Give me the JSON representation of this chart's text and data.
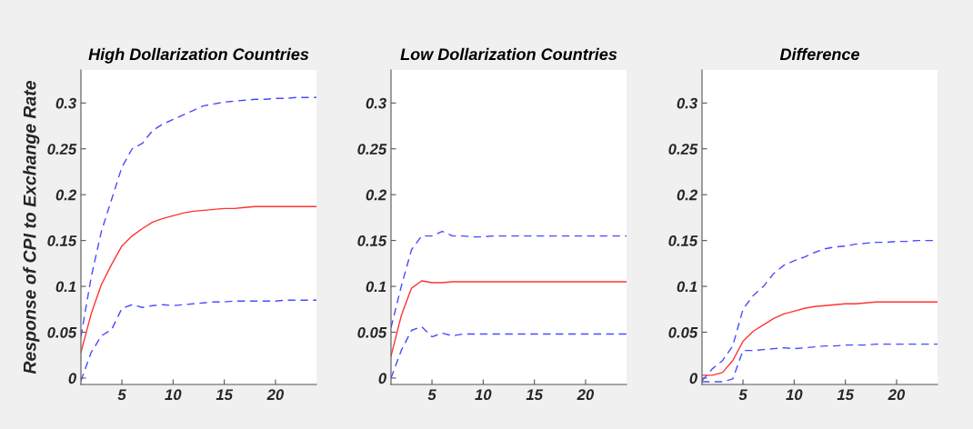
{
  "chart_data": [
    {
      "type": "line",
      "title": "High Dollarization Countries",
      "ylabel": "Response of CPI to Exchange Rate",
      "x": [
        1,
        2,
        3,
        4,
        5,
        6,
        7,
        8,
        9,
        10,
        11,
        12,
        13,
        14,
        15,
        16,
        17,
        18,
        19,
        20,
        21,
        22,
        23,
        24
      ],
      "xlim": [
        1,
        24
      ],
      "xticks": [
        5,
        10,
        15,
        20
      ],
      "ylim": [
        -0.007,
        0.336
      ],
      "yticks": [
        0,
        0.05,
        0.1,
        0.15,
        0.2,
        0.25,
        0.3
      ],
      "grid": false,
      "legend": false,
      "series": [
        {
          "color": "#ff3333",
          "line_style": "solid",
          "values": [
            0.028,
            0.07,
            0.102,
            0.124,
            0.144,
            0.155,
            0.163,
            0.17,
            0.174,
            0.177,
            0.18,
            0.182,
            0.183,
            0.184,
            0.185,
            0.185,
            0.186,
            0.187,
            0.187,
            0.187,
            0.187,
            0.187,
            0.187,
            0.187
          ]
        },
        {
          "color": "#4a4aff",
          "line_style": "dashed",
          "values": [
            0.045,
            0.11,
            0.16,
            0.195,
            0.23,
            0.25,
            0.256,
            0.27,
            0.277,
            0.282,
            0.287,
            0.292,
            0.297,
            0.299,
            0.301,
            0.302,
            0.303,
            0.304,
            0.304,
            0.305,
            0.305,
            0.306,
            0.306,
            0.306
          ]
        },
        {
          "color": "#4a4aff",
          "line_style": "dashed",
          "values": [
            -0.003,
            0.028,
            0.046,
            0.053,
            0.076,
            0.08,
            0.077,
            0.079,
            0.08,
            0.079,
            0.08,
            0.081,
            0.082,
            0.083,
            0.083,
            0.084,
            0.084,
            0.084,
            0.084,
            0.084,
            0.085,
            0.085,
            0.085,
            0.085
          ]
        }
      ]
    },
    {
      "type": "line",
      "title": "Low Dollarization Countries",
      "x": [
        1,
        2,
        3,
        4,
        5,
        6,
        7,
        8,
        9,
        10,
        11,
        12,
        13,
        14,
        15,
        16,
        17,
        18,
        19,
        20,
        21,
        22,
        23,
        24
      ],
      "xlim": [
        1,
        24
      ],
      "xticks": [
        5,
        10,
        15,
        20
      ],
      "ylim": [
        -0.007,
        0.336
      ],
      "yticks": [
        0,
        0.05,
        0.1,
        0.15,
        0.2,
        0.25,
        0.3
      ],
      "grid": false,
      "legend": false,
      "series": [
        {
          "color": "#ff3333",
          "line_style": "solid",
          "values": [
            0.024,
            0.068,
            0.098,
            0.106,
            0.104,
            0.104,
            0.105,
            0.105,
            0.105,
            0.105,
            0.105,
            0.105,
            0.105,
            0.105,
            0.105,
            0.105,
            0.105,
            0.105,
            0.105,
            0.105,
            0.105,
            0.105,
            0.105,
            0.105
          ]
        },
        {
          "color": "#4a4aff",
          "line_style": "dashed",
          "values": [
            0.055,
            0.1,
            0.14,
            0.155,
            0.155,
            0.16,
            0.155,
            0.155,
            0.154,
            0.154,
            0.155,
            0.155,
            0.155,
            0.155,
            0.155,
            0.155,
            0.155,
            0.155,
            0.155,
            0.155,
            0.155,
            0.155,
            0.155,
            0.155
          ]
        },
        {
          "color": "#4a4aff",
          "line_style": "dashed",
          "values": [
            0.0,
            0.03,
            0.052,
            0.056,
            0.045,
            0.049,
            0.046,
            0.048,
            0.048,
            0.048,
            0.048,
            0.048,
            0.048,
            0.048,
            0.048,
            0.048,
            0.048,
            0.048,
            0.048,
            0.048,
            0.048,
            0.048,
            0.048,
            0.048
          ]
        }
      ]
    },
    {
      "type": "line",
      "title": "Difference",
      "x": [
        1,
        2,
        3,
        4,
        5,
        6,
        7,
        8,
        9,
        10,
        11,
        12,
        13,
        14,
        15,
        16,
        17,
        18,
        19,
        20,
        21,
        22,
        23,
        24
      ],
      "xlim": [
        1,
        24
      ],
      "xticks": [
        5,
        10,
        15,
        20
      ],
      "ylim": [
        -0.007,
        0.336
      ],
      "yticks": [
        0,
        0.05,
        0.1,
        0.15,
        0.2,
        0.25,
        0.3
      ],
      "grid": false,
      "legend": false,
      "series": [
        {
          "color": "#ff3333",
          "line_style": "solid",
          "values": [
            0.003,
            0.003,
            0.006,
            0.019,
            0.04,
            0.051,
            0.058,
            0.065,
            0.07,
            0.073,
            0.076,
            0.078,
            0.079,
            0.08,
            0.081,
            0.081,
            0.082,
            0.083,
            0.083,
            0.083,
            0.083,
            0.083,
            0.083,
            0.083
          ]
        },
        {
          "color": "#4a4aff",
          "line_style": "dashed",
          "values": [
            -0.003,
            0.01,
            0.019,
            0.035,
            0.075,
            0.09,
            0.1,
            0.114,
            0.123,
            0.128,
            0.132,
            0.137,
            0.141,
            0.143,
            0.144,
            0.146,
            0.147,
            0.148,
            0.148,
            0.149,
            0.149,
            0.15,
            0.15,
            0.15
          ]
        },
        {
          "color": "#4a4aff",
          "line_style": "dashed",
          "values": [
            -0.004,
            -0.004,
            -0.004,
            -0.001,
            0.03,
            0.03,
            0.031,
            0.032,
            0.033,
            0.032,
            0.033,
            0.034,
            0.035,
            0.035,
            0.036,
            0.036,
            0.036,
            0.037,
            0.037,
            0.037,
            0.037,
            0.037,
            0.037,
            0.037
          ]
        }
      ]
    }
  ]
}
